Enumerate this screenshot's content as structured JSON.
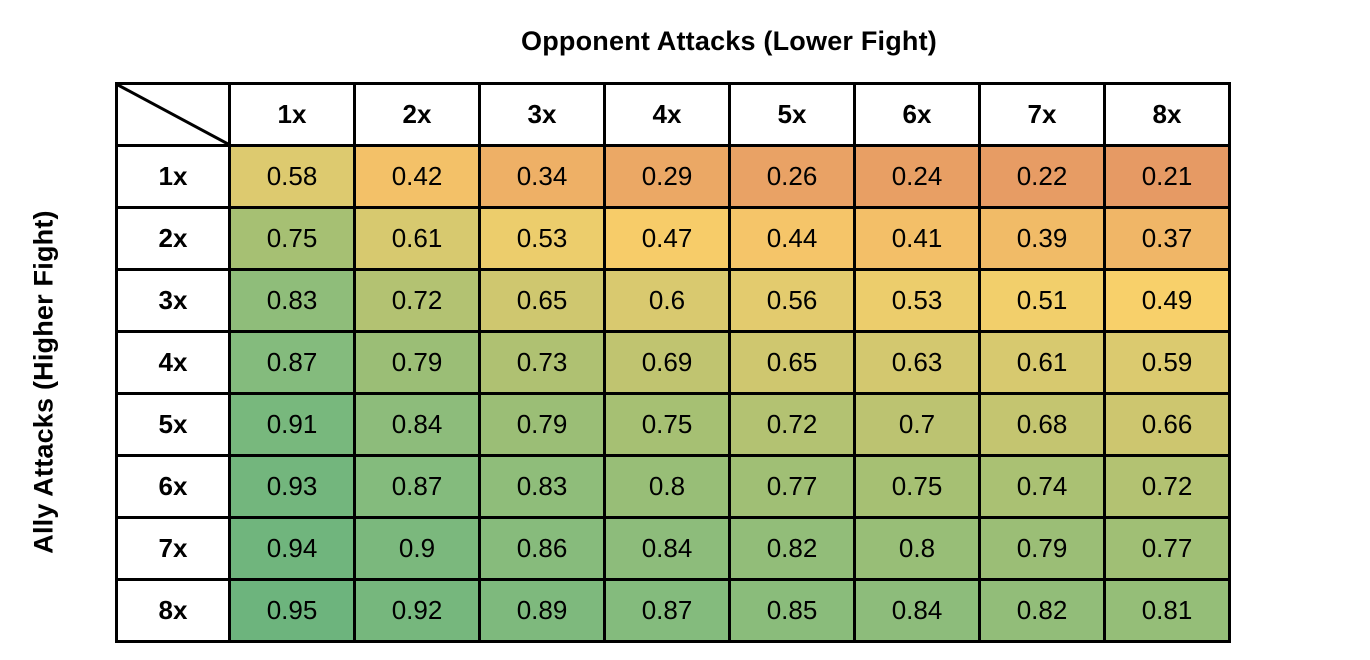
{
  "page": {
    "background": "#ffffff",
    "border_color": "#000000",
    "header_bg": "#ffffff",
    "text_color": "#000000"
  },
  "chart_data": {
    "type": "heatmap",
    "title": "Opponent Attacks (Lower Fight)",
    "ylabel": "Ally Attacks (Higher Fight)",
    "col_labels": [
      "1x",
      "2x",
      "3x",
      "4x",
      "5x",
      "6x",
      "7x",
      "8x"
    ],
    "row_labels": [
      "1x",
      "2x",
      "3x",
      "4x",
      "5x",
      "6x",
      "7x",
      "8x"
    ],
    "rows": [
      [
        0.58,
        0.42,
        0.34,
        0.29,
        0.26,
        0.24,
        0.22,
        0.21
      ],
      [
        0.75,
        0.61,
        0.53,
        0.47,
        0.44,
        0.41,
        0.39,
        0.37
      ],
      [
        0.83,
        0.72,
        0.65,
        0.6,
        0.56,
        0.53,
        0.51,
        0.49
      ],
      [
        0.87,
        0.79,
        0.73,
        0.69,
        0.65,
        0.63,
        0.61,
        0.59
      ],
      [
        0.91,
        0.84,
        0.79,
        0.75,
        0.72,
        0.7,
        0.68,
        0.66
      ],
      [
        0.93,
        0.87,
        0.83,
        0.8,
        0.77,
        0.75,
        0.74,
        0.72
      ],
      [
        0.94,
        0.9,
        0.86,
        0.84,
        0.82,
        0.8,
        0.79,
        0.77
      ],
      [
        0.95,
        0.92,
        0.89,
        0.87,
        0.85,
        0.84,
        0.82,
        0.81
      ]
    ],
    "value_range": [
      0.21,
      0.95
    ],
    "color_scale_stops": [
      [
        0.21,
        "#e69a64"
      ],
      [
        0.34,
        "#eeb066"
      ],
      [
        0.49,
        "#f8d06a"
      ],
      [
        0.58,
        "#ddca6f"
      ],
      [
        0.66,
        "#cdc66f"
      ],
      [
        0.75,
        "#a6c073"
      ],
      [
        0.87,
        "#84bb7d"
      ],
      [
        0.95,
        "#6db47d"
      ]
    ],
    "legend_position": "none",
    "grid": true
  }
}
